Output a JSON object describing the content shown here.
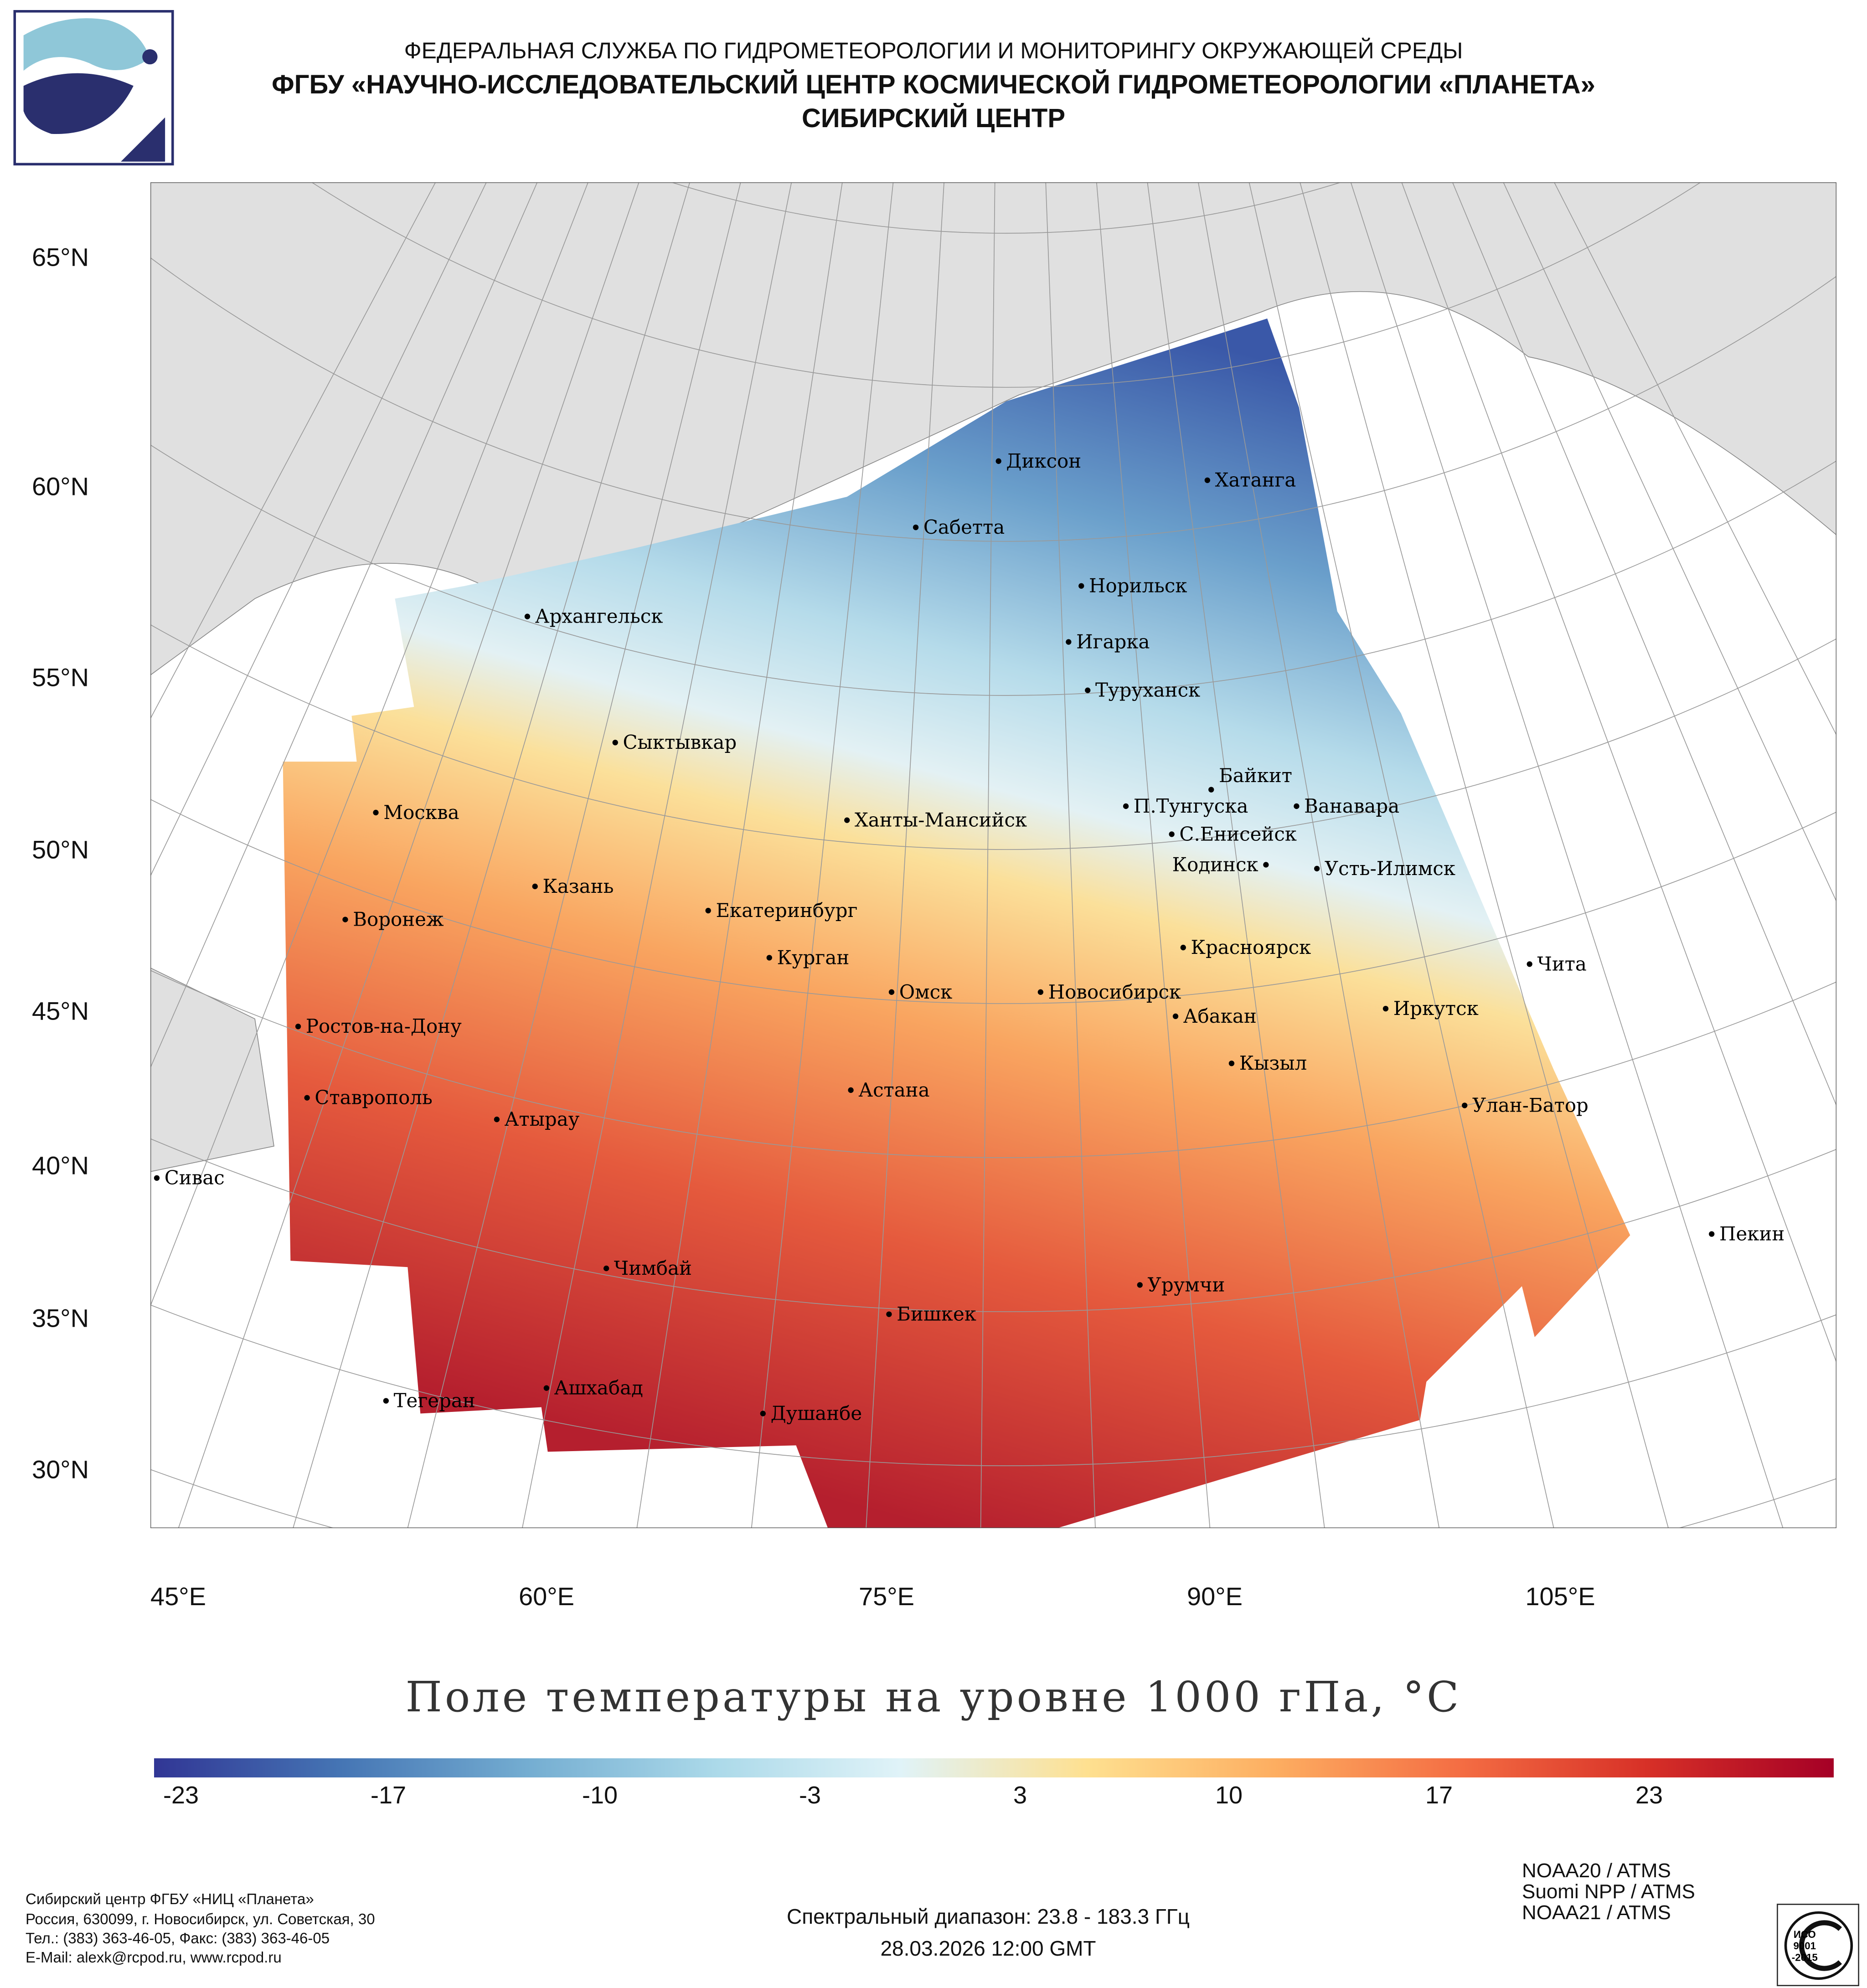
{
  "header": {
    "line1": "ФЕДЕРАЛЬНАЯ СЛУЖБА ПО ГИДРОМЕТЕОРОЛОГИИ И МОНИТОРИНГУ ОКРУЖАЮЩЕЙ СРЕДЫ",
    "line2": "ФГБУ «НАУЧНО-ИССЛЕДОВАТЕЛЬСКИЙ ЦЕНТР КОСМИЧЕСКОЙ ГИДРОМЕТЕОРОЛОГИИ «ПЛАНЕТА»",
    "line3": "СИБИРСКИЙ ЦЕНТР"
  },
  "map": {
    "lat_labels": [
      "65°N",
      "60°N",
      "55°N",
      "50°N",
      "45°N",
      "40°N",
      "35°N",
      "30°N"
    ],
    "lon_labels": [
      "45°E",
      "60°E",
      "75°E",
      "90°E",
      "105°E"
    ],
    "cities": [
      "Диксон",
      "Хатанга",
      "Сабетта",
      "Норильск",
      "Архангельск",
      "Игарка",
      "Туруханск",
      "Сыктывкар",
      "Байкит",
      "Москва",
      "П.Тунгуска",
      "Ванавара",
      "Ханты-Мансийск",
      "С.Енисейск",
      "Кодинск",
      "Усть-Илимск",
      "Казань",
      "Екатеринбург",
      "Воронеж",
      "Красноярск",
      "Курган",
      "Чита",
      "Омск",
      "Новосибирск",
      "Иркутск",
      "Абакан",
      "Ростов-на-Дону",
      "Кызыл",
      "Астана",
      "Ставрополь",
      "Улан-Батор",
      "Атырау",
      "Сивас",
      "Пекин",
      "Чимбай",
      "Урумчи",
      "Бишкек",
      "Ашхабад",
      "Тегеран",
      "Душанбе"
    ],
    "colors": {
      "cold": "#3a58a8",
      "mid": "#e3f1f4",
      "warm": "#fbe09a",
      "hot": "#b51f2e",
      "land": "#e0e0e0"
    }
  },
  "title": "Поле температуры на уровне 1000 гПа, °C",
  "colorbar": {
    "min": -26,
    "max": 29,
    "ticks": [
      "-23",
      "-17",
      "-10",
      "-3",
      "3",
      "10",
      "17",
      "23"
    ]
  },
  "footer": {
    "org": [
      "Сибирский центр ФГБУ «НИЦ «Планета»",
      "Россия, 630099, г. Новосибирск, ул. Советская, 30",
      "Тел.: (383) 363-46-05, Факс: (383) 363-46-05",
      "E-Mail: alexk@rcpod.ru, www.rcpod.ru"
    ],
    "spectral": "Спектральный диапазон: 23.8 - 183.3 ГГц",
    "datetime": "28.03.2026 12:00 GMT",
    "satellites": [
      "NOAA20 / ATMS",
      "Suomi NPP / ATMS",
      "NOAA21 / ATMS"
    ],
    "iso": [
      "ИСО",
      "9001",
      "-2015"
    ]
  }
}
